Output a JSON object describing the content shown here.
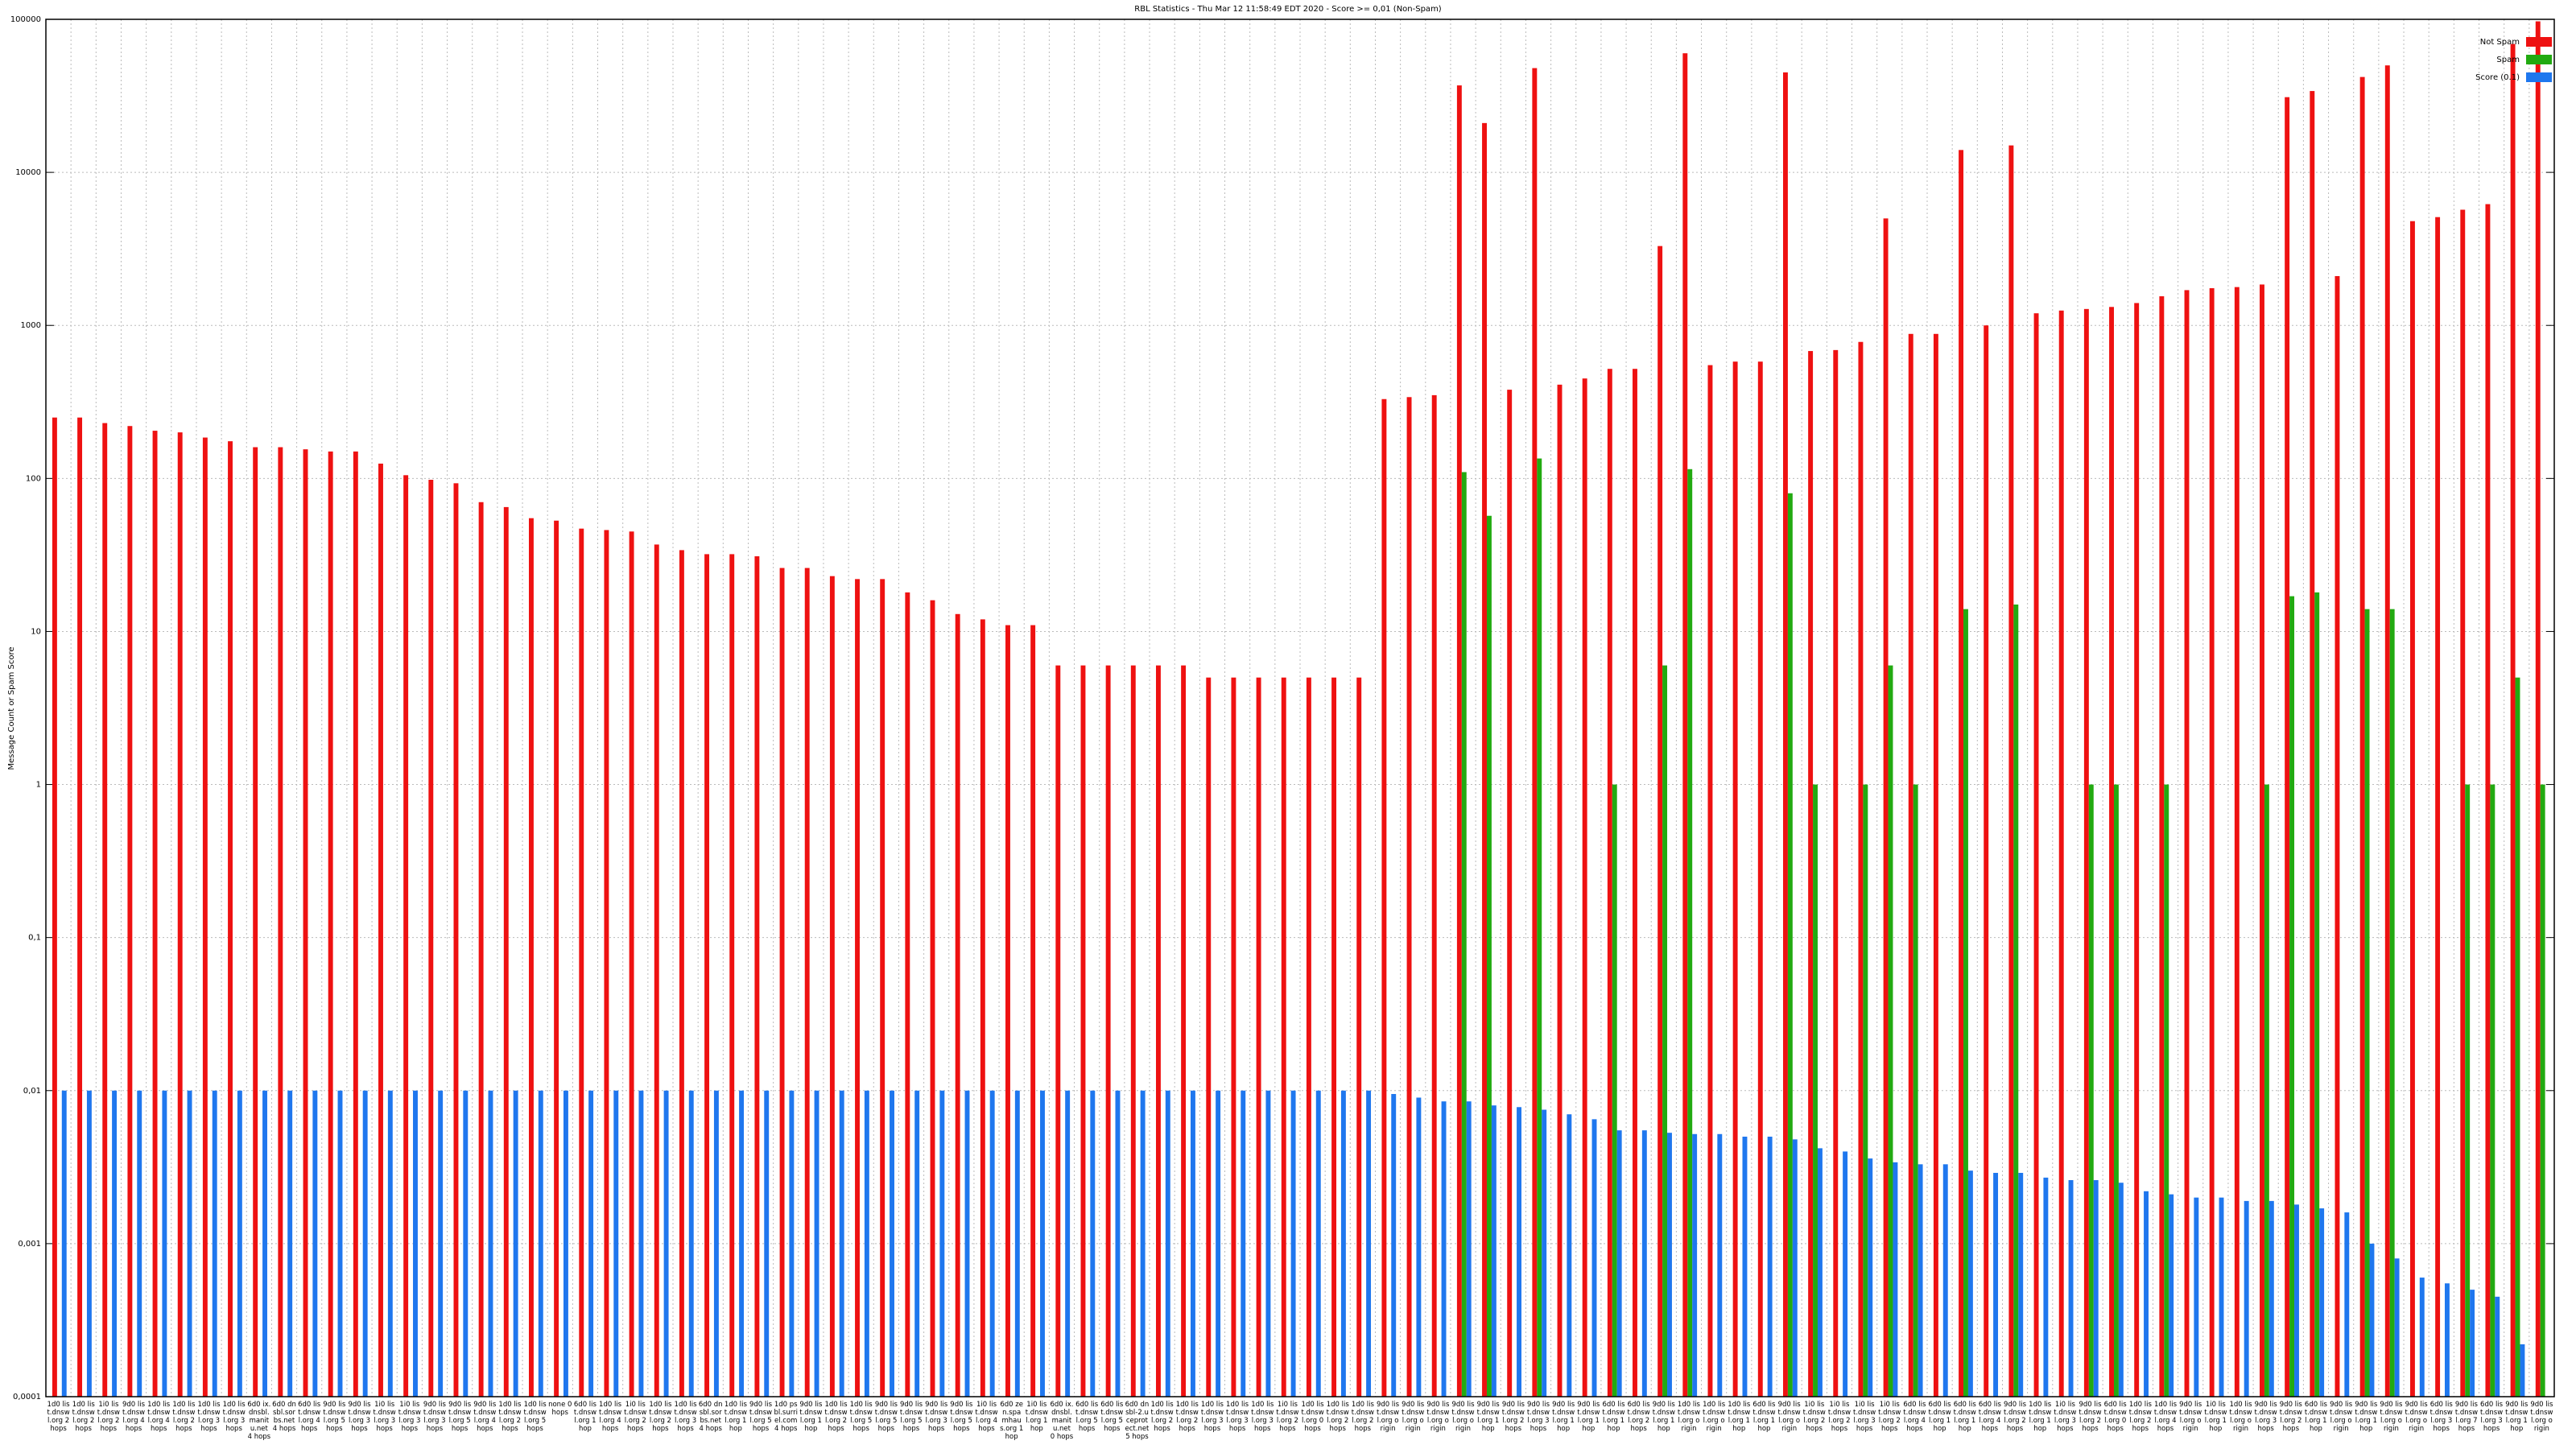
{
  "chart_data": {
    "type": "bar",
    "log_scale": true,
    "grid": true,
    "legend": "top-right",
    "title": "RBL Statistics - Thu Mar 12 11:58:49 EDT 2020 - Score >= 0,01 (Non-Spam)",
    "y_label": "Message Count or Spam Score",
    "ylim": [
      0.0001,
      100000
    ],
    "yticks": [
      {
        "value": 0.0001,
        "label": "0,0001"
      },
      {
        "value": 0.001,
        "label": "0,001"
      },
      {
        "value": 0.01,
        "label": "0,01"
      },
      {
        "value": 0.1,
        "label": "0,1"
      },
      1,
      10,
      100,
      1000,
      10000,
      100000
    ],
    "categories": [
      "1d0 list.dnswl.org 2 hops",
      "1d0 list.dnswl.org 2 hops",
      "1i0 list.dnswl.org 2 hops",
      "9d0 list.dnswl.org 4 hops",
      "1d0 list.dnswl.org 4 hops",
      "1d0 list.dnswl.org 2 hops",
      "1d0 list.dnswl.org 3 hops",
      "1d0 list.dnswl.org 3 hops",
      "6d0 ix.dnsbl.manitu.net 4 hops",
      "6d0 dnsbl.sorbs.net 4 hops",
      "6d0 list.dnswl.org 4 hops",
      "9d0 list.dnswl.org 5 hops",
      "9d0 list.dnswl.org 3 hops",
      "1i0 list.dnswl.org 3 hops",
      "1i0 list.dnswl.org 3 hops",
      "9d0 list.dnswl.org 3 hops",
      "9d0 list.dnswl.org 5 hops",
      "9d0 list.dnswl.org 4 hops",
      "1d0 list.dnswl.org 2 hops",
      "1d0 list.dnswl.org 5 hops",
      "none 0 hops",
      "6d0 list.dnswl.org 1 hop",
      "1d0 list.dnswl.org 4 hops",
      "1i0 list.dnswl.org 2 hops",
      "1d0 list.dnswl.org 2 hops",
      "1d0 list.dnswl.org 3 hops",
      "6d0 dnsbl.sorbs.net 4 hops",
      "1d0 list.dnswl.org 1 hop",
      "9d0 list.dnswl.org 5 hops",
      "1d0 psbl.surriel.com 4 hops",
      "9d0 list.dnswl.org 1 hop",
      "1d0 list.dnswl.org 2 hops",
      "1d0 list.dnswl.org 5 hops",
      "9d0 list.dnswl.org 5 hops",
      "9d0 list.dnswl.org 5 hops",
      "9d0 list.dnswl.org 3 hops",
      "9d0 list.dnswl.org 5 hops",
      "1i0 list.dnswl.org 4 hops",
      "6d0 zen.spamhaus.org 1 hop",
      "1i0 list.dnswl.org 1 hop",
      "6d0 ix.dnsbl.manitu.net 0 hops",
      "6d0 list.dnswl.org 5 hops",
      "6d0 list.dnswl.org 5 hops",
      "6d0 dnsbl-2.uceprotect.net 5 hops",
      "1d0 list.dnswl.org 2 hops",
      "1d0 list.dnswl.org 2 hops",
      "1d0 list.dnswl.org 3 hops",
      "1d0 list.dnswl.org 3 hops",
      "1d0 list.dnswl.org 3 hops",
      "1i0 list.dnswl.org 2 hops",
      "1d0 list.dnswl.org 0 hops",
      "1d0 list.dnswl.org 2 hops",
      "1d0 list.dnswl.org 2 hops",
      "9d0 list.dnswl.org origin",
      "9d0 list.dnswl.org origin",
      "9d0 list.dnswl.org origin",
      "9d0 list.dnswl.org origin",
      "9d0 list.dnswl.org 1 hop",
      "9d0 list.dnswl.org 2 hops",
      "9d0 list.dnswl.org 3 hops",
      "9d0 list.dnswl.org 1 hop",
      "9d0 list.dnswl.org 1 hop",
      "6d0 list.dnswl.org 1 hop",
      "6d0 list.dnswl.org 2 hops",
      "9d0 list.dnswl.org 1 hop",
      "1d0 list.dnswl.org origin",
      "1d0 list.dnswl.org origin",
      "1d0 list.dnswl.org 1 hop",
      "6d0 list.dnswl.org 1 hop",
      "9d0 list.dnswl.org origin",
      "1i0 list.dnswl.org 2 hops",
      "1i0 list.dnswl.org 2 hops",
      "1i0 list.dnswl.org 3 hops",
      "1i0 list.dnswl.org 2 hops",
      "6d0 list.dnswl.org 4 hops",
      "6d0 list.dnswl.org 1 hop",
      "6d0 list.dnswl.org 1 hop",
      "6d0 list.dnswl.org 4 hops",
      "9d0 list.dnswl.org 2 hops",
      "1d0 list.dnswl.org 1 hop",
      "1i0 list.dnswl.org 3 hops",
      "9d0 list.dnswl.org 2 hops",
      "6d0 list.dnswl.org 0 hops",
      "1d0 list.dnswl.org 2 hops",
      "1d0 list.dnswl.org 4 hops",
      "9d0 list.dnswl.org origin",
      "1i0 list.dnswl.org 1 hop",
      "1d0 list.dnswl.org origin",
      "9d0 list.dnswl.org 3 hops",
      "9d0 list.dnswl.org 2 hops",
      "6d0 list.dnswl.org 1 hop",
      "9d0 list.dnswl.org origin",
      "9d0 list.dnswl.org 1 hop",
      "9d0 list.dnswl.org origin",
      "9d0 list.dnswl.org origin",
      "6d0 list.dnswl.org 3 hops",
      "9d0 list.dnswl.org 7 hops",
      "6d0 list.dnswl.org 3 hops",
      "9d0 list.dnswl.org 1 hop",
      "9d0 list.dnswl.org origin"
    ],
    "series": [
      {
        "name": "Not Spam",
        "color": "#ee1111",
        "values": [
          250,
          250,
          230,
          220,
          205,
          200,
          185,
          175,
          160,
          160,
          155,
          150,
          150,
          125,
          105,
          98,
          93,
          70,
          65,
          55,
          53,
          47,
          46,
          45,
          37,
          34,
          32,
          32,
          31,
          26,
          26,
          23,
          22,
          22,
          18,
          16,
          13,
          12,
          11,
          11,
          6,
          6,
          6,
          6,
          6,
          6,
          5,
          5,
          5,
          5,
          5,
          5,
          5,
          330,
          340,
          350,
          37000,
          21000,
          380,
          48000,
          410,
          450,
          520,
          520,
          3300,
          60000,
          550,
          580,
          580,
          45000,
          680,
          690,
          780,
          5000,
          880,
          880,
          14000,
          1000,
          15000,
          1200,
          1250,
          1280,
          1320,
          1400,
          1550,
          1700,
          1750,
          1780,
          1850,
          31000,
          34000,
          2100,
          42000,
          50000,
          4800,
          5100,
          5700,
          6200,
          69000,
          97000
        ]
      },
      {
        "name": "Spam",
        "color": "#22aa11",
        "values": [
          null,
          null,
          null,
          null,
          null,
          null,
          null,
          null,
          null,
          null,
          null,
          null,
          null,
          null,
          null,
          null,
          null,
          null,
          null,
          null,
          null,
          null,
          null,
          null,
          null,
          null,
          null,
          null,
          null,
          null,
          null,
          null,
          null,
          null,
          null,
          null,
          null,
          null,
          null,
          null,
          null,
          null,
          null,
          null,
          null,
          null,
          null,
          null,
          null,
          null,
          null,
          null,
          null,
          null,
          null,
          null,
          110,
          57,
          null,
          135,
          null,
          null,
          1,
          null,
          6,
          115,
          null,
          null,
          null,
          80,
          1,
          null,
          1,
          6,
          1,
          null,
          14,
          null,
          15,
          null,
          null,
          1,
          1,
          null,
          1,
          null,
          null,
          null,
          1,
          17,
          18,
          null,
          14,
          14,
          null,
          null,
          1,
          1,
          5,
          1
        ]
      },
      {
        "name": "Score (0.1)",
        "color": "#1f77ee",
        "values": [
          0.01,
          0.01,
          0.01,
          0.01,
          0.01,
          0.01,
          0.01,
          0.01,
          0.01,
          0.01,
          0.01,
          0.01,
          0.01,
          0.01,
          0.01,
          0.01,
          0.01,
          0.01,
          0.01,
          0.01,
          0.01,
          0.01,
          0.01,
          0.01,
          0.01,
          0.01,
          0.01,
          0.01,
          0.01,
          0.01,
          0.01,
          0.01,
          0.01,
          0.01,
          0.01,
          0.01,
          0.01,
          0.01,
          0.01,
          0.01,
          0.01,
          0.01,
          0.01,
          0.01,
          0.01,
          0.01,
          0.01,
          0.01,
          0.01,
          0.01,
          0.01,
          0.01,
          0.01,
          0.0095,
          0.009,
          0.0085,
          0.0085,
          0.008,
          0.0078,
          0.0075,
          0.007,
          0.0065,
          0.0055,
          0.0055,
          0.0053,
          0.0052,
          0.0052,
          0.005,
          0.005,
          0.0048,
          0.0042,
          0.004,
          0.0036,
          0.0034,
          0.0033,
          0.0033,
          0.003,
          0.0029,
          0.0029,
          0.0027,
          0.0026,
          0.0026,
          0.0025,
          0.0022,
          0.0021,
          0.002,
          0.002,
          0.0019,
          0.0019,
          0.0018,
          0.0017,
          0.0016,
          0.001,
          0.0008,
          0.0006,
          0.00055,
          0.0005,
          0.00045,
          0.00022,
          null
        ]
      }
    ]
  }
}
